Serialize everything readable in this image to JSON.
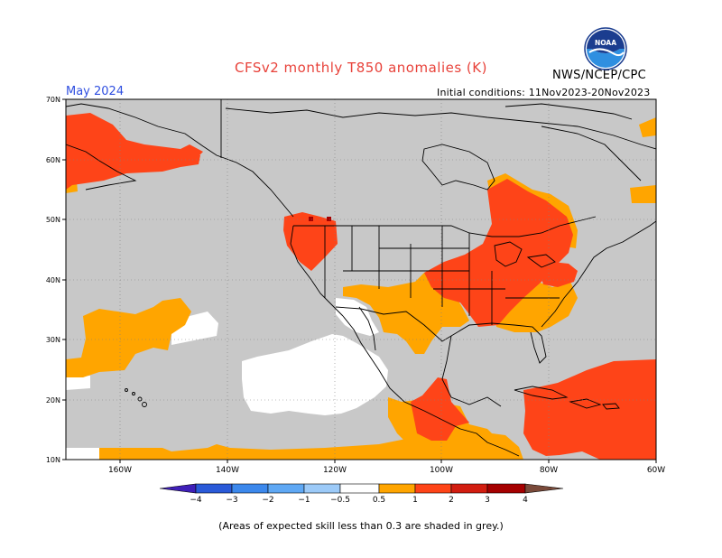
{
  "header": {
    "title": "CFSv2 monthly T850 anomalies (K)",
    "agency": "NWS/NCEP/CPC",
    "valid_month": "May 2024",
    "initial_conditions": "Initial conditions: 11Nov2023-20Nov2023",
    "logo_text": "NOAA"
  },
  "map": {
    "lat_labels": [
      "70N",
      "60N",
      "50N",
      "40N",
      "30N",
      "20N",
      "10N"
    ],
    "lon_labels": [
      "160W",
      "140W",
      "120W",
      "100W",
      "80W",
      "60W"
    ],
    "colors": {
      "skill_mask_grey": "#c8c8c8",
      "neutral_white": "#ffffff",
      "anom_0_5_to_1": "#ffa500",
      "anom_1_to_2": "#fe4418",
      "anom_2_to_3": "#a50000",
      "border_lines": "#000000"
    }
  },
  "colorbar": {
    "labels": [
      "−4",
      "−3",
      "−2",
      "−1",
      "−0.5",
      "0.5",
      "1",
      "2",
      "3",
      "4"
    ],
    "colors": [
      "#3f1fb8",
      "#2a5ad8",
      "#3c88ec",
      "#5fa8f4",
      "#9ccaf8",
      "#ffffff",
      "#ffa500",
      "#fe4418",
      "#d21d10",
      "#a50000",
      "#c59a88",
      "#7a4a3a"
    ]
  },
  "footnote": "(Areas of expected skill less than 0.3 are shaded in grey.)"
}
